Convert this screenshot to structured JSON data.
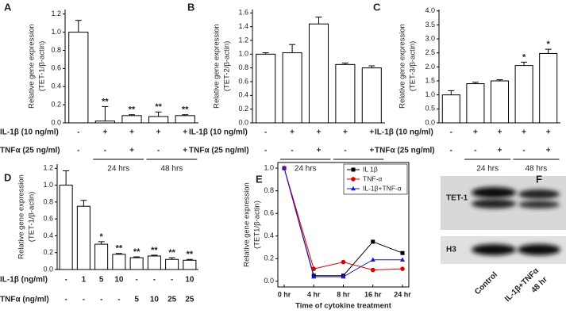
{
  "chart_data": [
    {
      "panel": "A",
      "type": "bar",
      "color": "#ffffff",
      "ylabel": [
        "Relative gene expression",
        "(TET-1/β-actin)"
      ],
      "values": [
        1.0,
        0.02,
        0.08,
        0.07,
        0.08
      ],
      "errors": [
        0.13,
        0.16,
        0.01,
        0.05,
        0.01
      ],
      "annotations": [
        null,
        "**",
        "**",
        "**",
        "**"
      ],
      "ylim": [
        0,
        1.25
      ],
      "yticks": [
        {
          "value": 0,
          "label": "0.0"
        },
        {
          "value": 0.2,
          "label": "0.2"
        },
        {
          "value": 0.4,
          "label": "0.4"
        },
        {
          "value": 0.6,
          "label": "0.6"
        },
        {
          "value": 0.8,
          "label": "0.8"
        },
        {
          "value": 1.0,
          "label": "1.0"
        },
        {
          "value": 1.2,
          "label": "1.2"
        }
      ],
      "conditions": [
        {
          "label": "IL-1β (10 ng/ml)",
          "values": [
            "-",
            "+",
            "+",
            "+",
            "+"
          ]
        },
        {
          "label": "TNFα (25 ng/ml)",
          "values": [
            "-",
            "-",
            "+",
            "-",
            "+"
          ]
        }
      ],
      "groups": [
        "24 hrs",
        "48 hrs"
      ]
    },
    {
      "panel": "B",
      "type": "bar",
      "color": "#ffffff",
      "ylabel": [
        "Relative gene expression",
        "(TET-2/β-actin)"
      ],
      "values": [
        1.0,
        1.02,
        1.44,
        0.85,
        0.8
      ],
      "errors": [
        0.02,
        0.12,
        0.1,
        0.02,
        0.03
      ],
      "ylim": [
        0,
        1.65
      ],
      "yticks": [
        {
          "value": 0,
          "label": "0.0"
        },
        {
          "value": 0.2,
          "label": "0.2"
        },
        {
          "value": 0.4,
          "label": "0.4"
        },
        {
          "value": 0.6,
          "label": "0.6"
        },
        {
          "value": 0.8,
          "label": "0.8"
        },
        {
          "value": 1.0,
          "label": "1.0"
        },
        {
          "value": 1.2,
          "label": "1.2"
        },
        {
          "value": 1.4,
          "label": "1.4"
        },
        {
          "value": 1.6,
          "label": "1.6"
        }
      ],
      "conditions": [
        {
          "label": "IL-1β (10 ng/ml)",
          "values": [
            "-",
            "+",
            "+",
            "+",
            "+"
          ]
        },
        {
          "label": "TNFα (25 ng/ml)",
          "values": [
            "-",
            "-",
            "+",
            "-",
            "+"
          ]
        }
      ],
      "groups": [
        "24 hrs",
        "48 hrs"
      ]
    },
    {
      "panel": "C",
      "type": "bar",
      "color": "#ffffff",
      "ylabel": [
        "Relative gene expression",
        "(TET-3/β-actin)"
      ],
      "values": [
        1.0,
        1.4,
        1.5,
        2.05,
        2.48
      ],
      "errors": [
        0.15,
        0.05,
        0.04,
        0.12,
        0.15
      ],
      "annotations": [
        null,
        null,
        null,
        "*",
        "*"
      ],
      "ylim": [
        0,
        4.05
      ],
      "yticks": [
        {
          "value": 0,
          "label": "0.0"
        },
        {
          "value": 0.5,
          "label": "0.5"
        },
        {
          "value": 1.0,
          "label": "1.0"
        },
        {
          "value": 1.5,
          "label": "1.5"
        },
        {
          "value": 2.0,
          "label": "2.0"
        },
        {
          "value": 2.5,
          "label": "2.5"
        },
        {
          "value": 3.0,
          "label": "3.0"
        },
        {
          "value": 3.5,
          "label": "3.5"
        },
        {
          "value": 4.0,
          "label": "4.0"
        }
      ],
      "conditions": [
        {
          "label": "IL-1β (10 ng/ml)",
          "values": [
            "-",
            "+",
            "+",
            "+",
            "+"
          ]
        },
        {
          "label": "TNFα (25 ng/ml)",
          "values": [
            "-",
            "-",
            "+",
            "-",
            "+"
          ]
        }
      ],
      "groups": [
        "24 hrs",
        "48 hrs"
      ]
    },
    {
      "panel": "D",
      "type": "bar",
      "color": "#ffffff",
      "ylabel": [
        "Relative gene expression",
        "(TET-1/β-actin)"
      ],
      "values": [
        1.0,
        0.75,
        0.3,
        0.18,
        0.14,
        0.16,
        0.12,
        0.11
      ],
      "errors": [
        0.17,
        0.07,
        0.03,
        0.01,
        0.01,
        0.01,
        0.02,
        0.01
      ],
      "annotations": [
        null,
        null,
        "*",
        "**",
        "**",
        "**",
        "**",
        "**"
      ],
      "ylim": [
        0,
        1.25
      ],
      "yticks": [
        {
          "value": 0,
          "label": "0.0"
        },
        {
          "value": 0.2,
          "label": "0.2"
        },
        {
          "value": 0.4,
          "label": "0.4"
        },
        {
          "value": 0.6,
          "label": "0.6"
        },
        {
          "value": 0.8,
          "label": "0.8"
        },
        {
          "value": 1.0,
          "label": "1.0"
        },
        {
          "value": 1.2,
          "label": "1.2"
        }
      ],
      "conditions": [
        {
          "label": "IL-1β (ng/ml)",
          "values": [
            "-",
            "1",
            "5",
            "10",
            "-",
            "-",
            "-",
            "10"
          ]
        },
        {
          "label": "TNFα (ng/ml)",
          "values": [
            "-",
            "-",
            "-",
            "-",
            "5",
            "10",
            "25",
            "25"
          ]
        }
      ]
    },
    {
      "panel": "E",
      "type": "line",
      "ylabel": [
        "Relative gene expression",
        "(TET1/β-actin)"
      ],
      "xlabel": "Time of cytokine treatment",
      "categories": [
        "0 hr",
        "4 hr",
        "8 hr",
        "16 hr",
        "24 hr"
      ],
      "series": [
        {
          "name": "IL 1β",
          "color": "#000000",
          "marker": "square",
          "values": [
            1.0,
            0.05,
            0.05,
            0.35,
            0.25
          ]
        },
        {
          "name": "TNF-α",
          "color": "#e00000",
          "marker": "circle",
          "values": [
            1.0,
            0.11,
            0.17,
            0.1,
            0.11
          ]
        },
        {
          "name": "IL-1β+TNF-α",
          "color": "#1a1ad0",
          "marker": "triangle",
          "values": [
            1.0,
            0.04,
            0.04,
            0.19,
            0.19
          ]
        }
      ],
      "ylim": [
        -0.05,
        1.05
      ],
      "yticks": [
        {
          "value": 0,
          "label": "0.0"
        },
        {
          "value": 0.2,
          "label": "0.2"
        },
        {
          "value": 0.4,
          "label": "0.4"
        },
        {
          "value": 0.6,
          "label": "0.6"
        },
        {
          "value": 0.8,
          "label": "0.8"
        },
        {
          "value": 1.0,
          "label": "1.0"
        }
      ],
      "legend": "upper right"
    }
  ],
  "blot": {
    "panel": "F",
    "rows": [
      "TET-1",
      "H3"
    ],
    "lanes": [
      [
        "Control"
      ],
      [
        "IL-1β+TNFα",
        "48 hr"
      ]
    ]
  }
}
